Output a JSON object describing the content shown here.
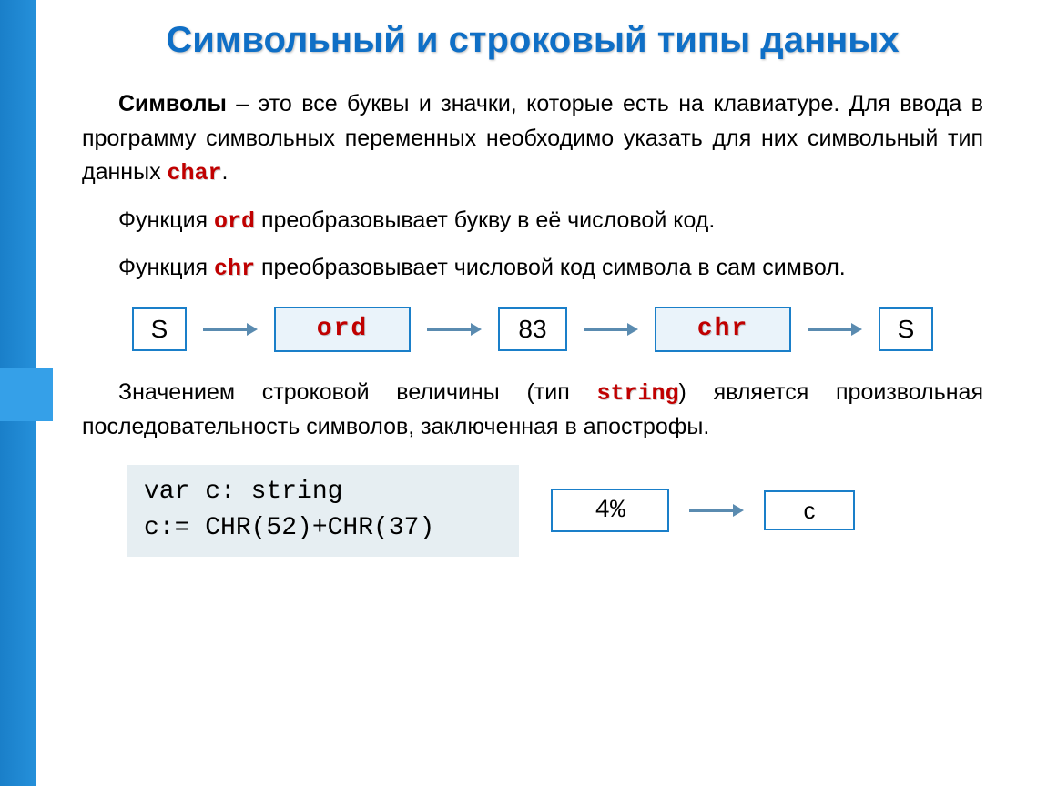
{
  "colors": {
    "accent": "#0f6fc6",
    "sidebar_grad_from": "#1a7fc9",
    "sidebar_grad_to": "#2590da",
    "sidebar_square": "#35a0e8",
    "box_border": "#1a7fc9",
    "func_box_bg": "#eaf3fa",
    "arrow": "#5a8bb0",
    "code_bg": "#e6eef2",
    "keyword_red": "#c00000",
    "text": "#000000",
    "background": "#ffffff"
  },
  "title": "Символьный и строковый типы данных",
  "p1": {
    "lead_bold": "Символы",
    "rest1": " – это все буквы и значки, которые есть на клавиатуре. Для ввода в программу символьных переменных необходимо указать для них символьный тип данных ",
    "kw": "char",
    "tail": "."
  },
  "p2": {
    "pre": "Функция ",
    "kw": "ord",
    "post": " преобразовывает букву в её числовой код."
  },
  "p3": {
    "pre": "Функция ",
    "kw": "chr",
    "post": " преобразовывает числовой код символа в сам символ."
  },
  "diagram": {
    "type": "flowchart",
    "nodes": [
      {
        "id": "s1",
        "label": "S",
        "style": "small"
      },
      {
        "id": "ord",
        "label": "ord",
        "style": "func"
      },
      {
        "id": "n83",
        "label": "83",
        "style": "med"
      },
      {
        "id": "chr",
        "label": "chr",
        "style": "func"
      },
      {
        "id": "s2",
        "label": "S",
        "style": "small"
      }
    ],
    "edges": [
      [
        "s1",
        "ord"
      ],
      [
        "ord",
        "n83"
      ],
      [
        "n83",
        "chr"
      ],
      [
        "chr",
        "s2"
      ]
    ]
  },
  "p4": {
    "pre": "Значением строковой величины (тип ",
    "kw": "string",
    "post": ") является произвольная последовательность символов, заключенная в апострофы."
  },
  "code": {
    "line1": "var c: string",
    "line2": "c:= CHR(52)+CHR(37)"
  },
  "result": {
    "value": "4%",
    "var": "c"
  }
}
